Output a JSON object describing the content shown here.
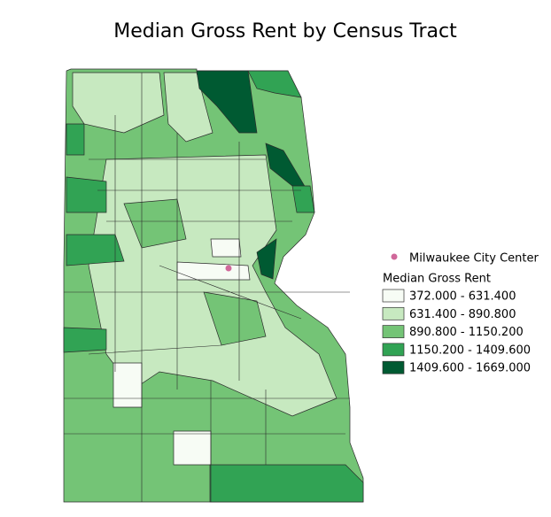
{
  "title": "Median Gross Rent by Census Tract",
  "point_legend": {
    "label": "Milwaukee City Center",
    "color": "#d0689a"
  },
  "legend": {
    "title": "Median Gross Rent",
    "items": [
      {
        "label": "372.000 - 631.400",
        "color": "#f7fcf5"
      },
      {
        "label": "631.400 - 890.800",
        "color": "#c7e9c0"
      },
      {
        "label": "890.800 - 1150.200",
        "color": "#74c476"
      },
      {
        "label": "1150.200 - 1409.600",
        "color": "#31a354"
      },
      {
        "label": "1409.600 - 1669.000",
        "color": "#005a32"
      }
    ]
  }
}
